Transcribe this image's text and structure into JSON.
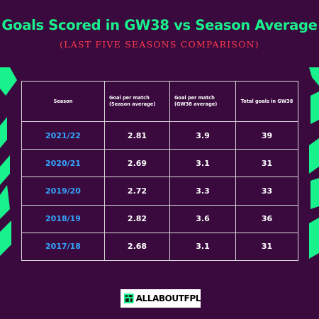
{
  "title": "Goals Scored in GW38 vs Season Average",
  "subtitle": "(LAST FIVE SEASONS COMPARISON)",
  "logo_text": "ALLABOUTFPL",
  "colors": {
    "background": "#3a0a3e",
    "title": "#19f28c",
    "subtitle": "#ff3a4c",
    "season_text": "#34a4ff",
    "accent_green": "#19f28c"
  },
  "chart_data": {
    "type": "table",
    "columns": [
      "Season",
      "Goal per match (Season average)",
      "Goal per match (GW38 average)",
      "Total goals in GW38"
    ],
    "rows": [
      [
        "2021/22",
        "2.81",
        "3.9",
        "39"
      ],
      [
        "2020/21",
        "2.69",
        "3.1",
        "31"
      ],
      [
        "2019/20",
        "2.72",
        "3.3",
        "33"
      ],
      [
        "2018/19",
        "2.82",
        "3.6",
        "36"
      ],
      [
        "2017/18",
        "2.68",
        "3.1",
        "31"
      ]
    ]
  }
}
